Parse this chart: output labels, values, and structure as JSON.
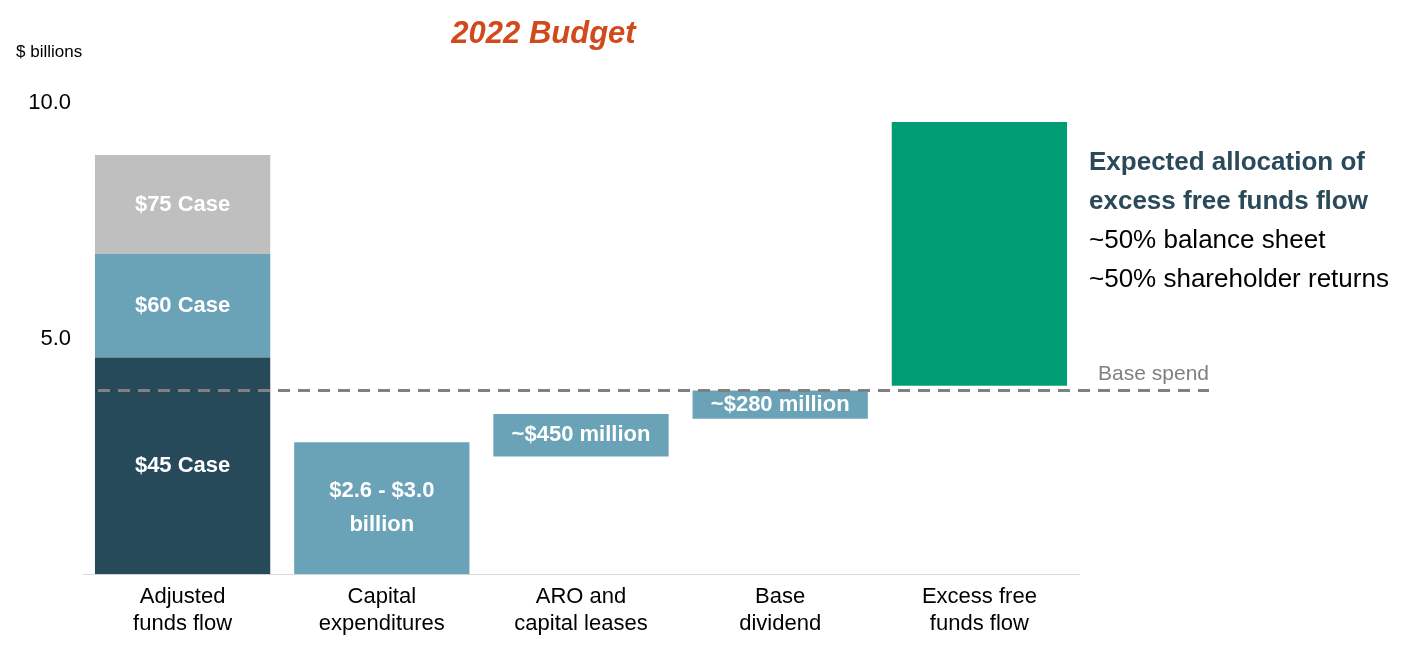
{
  "chart_data": {
    "type": "bar",
    "title": "2022 Budget",
    "ylabel": "$ billions",
    "categories": [
      "Adjusted funds flow",
      "Capital expenditures",
      "ARO and capital leases",
      "Base dividend",
      "Excess free funds flow"
    ],
    "stacked": true,
    "series": [
      {
        "name": "$45 Case",
        "color": "#264a5a",
        "values": [
          4.6,
          null,
          null,
          null,
          null
        ]
      },
      {
        "name": "$60 Case",
        "color": "#6aa3b8",
        "values": [
          2.2,
          null,
          null,
          null,
          null
        ]
      },
      {
        "name": "$75 Case",
        "color": "#bfbfbf",
        "values": [
          2.1,
          null,
          null,
          null,
          null
        ]
      },
      {
        "colors": [
          null,
          "#6aa3b8",
          "#6aa3b8",
          "#6aa3b8",
          "#009c74"
        ],
        "values": [
          null,
          2.8,
          0.9,
          0.6,
          5.6
        ],
        "base": [
          null,
          0,
          2.5,
          3.3,
          4.0
        ]
      }
    ],
    "ylim": [
      0,
      10
    ],
    "yticks": [
      {
        "value": 5,
        "label": "5.0"
      },
      {
        "value": 10,
        "label": "10.0"
      }
    ],
    "grid": false,
    "legend": false,
    "ref_lines": [
      {
        "axis": "y",
        "value": 3.9,
        "label": "Base spend",
        "color": "#808080",
        "line_style": "dashed"
      }
    ],
    "annotations": [
      "$2.6 - $3.0 billion",
      "~$450 million",
      "~$280 million",
      "Expected allocation of excess free funds flow",
      "~50% balance sheet",
      "~50% shareholder returns"
    ]
  }
}
